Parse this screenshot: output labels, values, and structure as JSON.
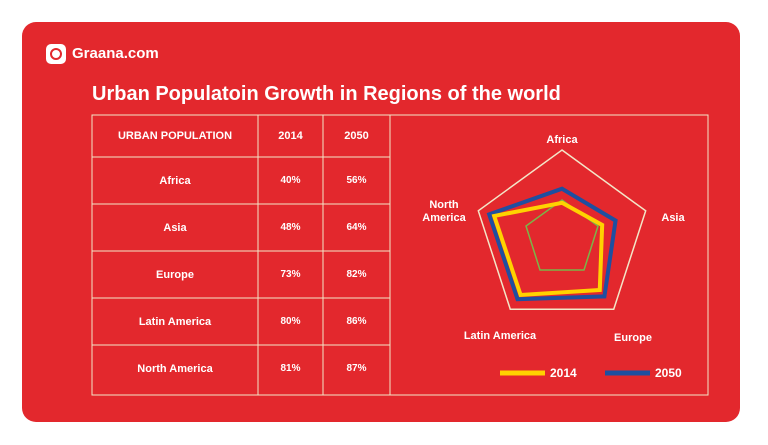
{
  "header": {
    "brand": "Graana.com",
    "title": "Urban Populatoin Growth in Regions of the world"
  },
  "table": {
    "first_header": "URBAN POPULATION"
  },
  "chart_data": {
    "type": "radar",
    "categories": [
      "Africa",
      "Asia",
      "Europe",
      "Latin America",
      "North America"
    ],
    "rlim": [
      0,
      100
    ],
    "series": [
      {
        "name": "2014",
        "color": "#ffd200",
        "values": [
          40,
          48,
          73,
          80,
          81
        ],
        "value_labels": [
          "40%",
          "48%",
          "73%",
          "80%",
          "81%"
        ]
      },
      {
        "name": "2050",
        "color": "#1f4fa0",
        "values": [
          56,
          64,
          82,
          86,
          87
        ],
        "value_labels": [
          "56%",
          "64%",
          "82%",
          "86%",
          "87%"
        ]
      }
    ]
  }
}
